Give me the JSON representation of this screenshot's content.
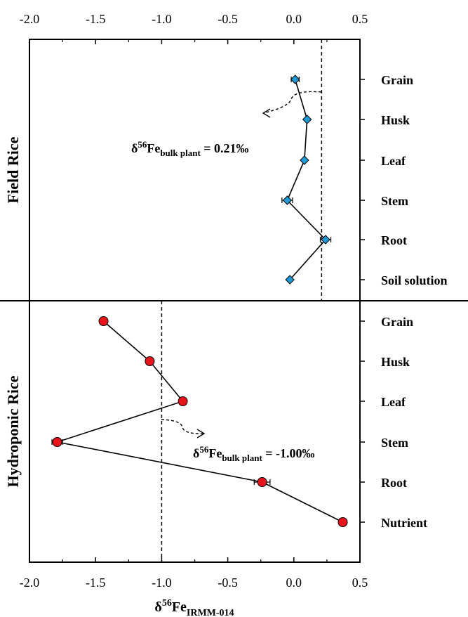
{
  "chart_data": {
    "type": "scatter",
    "xlabel": "δ56FeIRMM-014",
    "xlabel_parts": {
      "symbol": "δ",
      "superscript": "56",
      "base": "Fe",
      "subscript": "IRMM-014"
    },
    "xlim": [
      -2.0,
      0.5
    ],
    "x_ticks": [
      "-2.0",
      "-1.5",
      "-1.0",
      "-0.5",
      "0.0",
      "0.5"
    ],
    "x_tick_values": [
      -2.0,
      -1.5,
      -1.0,
      -0.5,
      0.0,
      0.5
    ],
    "panels": [
      {
        "label": "Field Rice",
        "color": "#1e9bd7",
        "marker": "diamond",
        "categories": [
          "Grain",
          "Husk",
          "Leaf",
          "Stem",
          "Root",
          "Soil solution"
        ],
        "x": [
          0.01,
          0.1,
          0.08,
          -0.05,
          0.24,
          -0.03
        ],
        "xerr": [
          0.03,
          0.0,
          0.0,
          0.04,
          0.04,
          0.0
        ],
        "bulk_plant": 0.21,
        "annotation": {
          "prefix": "δ",
          "superscript": "56",
          "base": "Fe",
          "subscript": "bulk plant",
          "value_text": " = 0.21‰"
        }
      },
      {
        "label": "Hydroponic Rice",
        "color": "#e8141c",
        "marker": "circle",
        "categories": [
          "Grain",
          "Husk",
          "Leaf",
          "Stem",
          "Root",
          "Nutrient"
        ],
        "x": [
          -1.44,
          -1.09,
          -0.84,
          -1.79,
          -0.24,
          0.37
        ],
        "xerr": [
          0.0,
          0.0,
          0.0,
          0.04,
          0.06,
          0.0
        ],
        "bulk_plant": -1.0,
        "annotation": {
          "prefix": "δ",
          "superscript": "56",
          "base": "Fe",
          "subscript": "bulk plant",
          "value_text": " = -1.00‰"
        }
      }
    ],
    "grid": false
  }
}
